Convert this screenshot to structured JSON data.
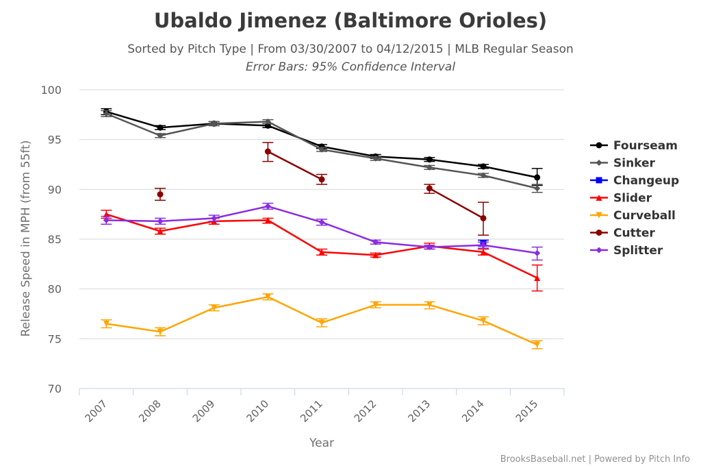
{
  "chart_data": {
    "type": "line",
    "title": "Ubaldo Jimenez (Baltimore Orioles)",
    "subtitle": "Sorted by Pitch Type | From 03/30/2007 to 04/12/2015 | MLB Regular Season",
    "subtitle2": "Error Bars: 95% Confidence Interval",
    "xlabel": "Year",
    "ylabel": "Release Speed in MPH (from 55ft)",
    "ylim": [
      70,
      100
    ],
    "yticks": [
      "70",
      "75",
      "80",
      "85",
      "90",
      "95",
      "100"
    ],
    "categories": [
      "2007",
      "2008",
      "2009",
      "2010",
      "2011",
      "2012",
      "2013",
      "2014",
      "2015"
    ],
    "grid": "horizontal",
    "legend_position": "right",
    "credits": "BrooksBaseball.net | Powered by Pitch Info",
    "series": [
      {
        "name": "Fourseam",
        "color": "#000000",
        "marker": "circle",
        "values": [
          97.8,
          96.2,
          96.6,
          96.4,
          94.3,
          93.3,
          93.0,
          92.3,
          91.2
        ],
        "err_low": [
          97.5,
          96.0,
          96.4,
          96.2,
          94.1,
          93.1,
          92.8,
          92.1,
          90.4
        ],
        "err_high": [
          98.1,
          96.4,
          96.8,
          96.6,
          94.5,
          93.5,
          93.2,
          92.5,
          92.1
        ]
      },
      {
        "name": "Sinker",
        "color": "#555555",
        "marker": "diamond",
        "values": [
          97.6,
          95.4,
          96.6,
          96.8,
          94.0,
          93.1,
          92.2,
          91.4,
          90.1
        ],
        "err_low": [
          97.3,
          95.2,
          96.4,
          96.6,
          93.8,
          92.9,
          92.0,
          91.2,
          89.7
        ],
        "err_high": [
          97.9,
          95.6,
          96.8,
          97.0,
          94.2,
          93.3,
          92.4,
          91.6,
          90.5
        ]
      },
      {
        "name": "Changeup",
        "color": "#0000ff",
        "marker": "square",
        "values": [
          null,
          null,
          null,
          null,
          null,
          null,
          null,
          84.6,
          null
        ],
        "err_low": [
          null,
          null,
          null,
          null,
          null,
          null,
          null,
          84.3,
          null
        ],
        "err_high": [
          null,
          null,
          null,
          null,
          null,
          null,
          null,
          84.9,
          null
        ]
      },
      {
        "name": "Slider",
        "color": "#ff0000",
        "marker": "triangle",
        "values": [
          87.5,
          85.8,
          86.8,
          86.9,
          83.7,
          83.4,
          84.3,
          83.7,
          81.1
        ],
        "err_low": [
          87.1,
          85.5,
          86.5,
          86.6,
          83.4,
          83.2,
          84.0,
          83.4,
          79.8
        ],
        "err_high": [
          87.9,
          86.1,
          87.1,
          87.1,
          84.0,
          83.6,
          84.6,
          84.0,
          82.4
        ]
      },
      {
        "name": "Curveball",
        "color": "#ffa500",
        "marker": "triangle-down",
        "values": [
          76.5,
          75.7,
          78.1,
          79.2,
          76.6,
          78.4,
          78.4,
          76.8,
          74.4
        ],
        "err_low": [
          76.1,
          75.3,
          77.8,
          78.9,
          76.2,
          78.1,
          78.0,
          76.4,
          74.0
        ],
        "err_high": [
          76.9,
          76.1,
          78.4,
          79.5,
          77.0,
          78.7,
          78.7,
          77.2,
          74.8
        ]
      },
      {
        "name": "Cutter",
        "color": "#8b0000",
        "marker": "circle",
        "values": [
          null,
          89.5,
          null,
          93.8,
          91.0,
          null,
          90.1,
          87.1,
          null
        ],
        "err_low": [
          null,
          88.9,
          null,
          92.8,
          90.5,
          null,
          89.6,
          85.4,
          null
        ],
        "err_high": [
          null,
          90.1,
          null,
          94.7,
          91.5,
          null,
          90.5,
          88.7,
          null
        ]
      },
      {
        "name": "Splitter",
        "color": "#8a2be2",
        "marker": "diamond",
        "values": [
          86.9,
          86.8,
          87.1,
          88.3,
          86.7,
          84.7,
          84.2,
          84.4,
          83.6
        ],
        "err_low": [
          86.5,
          86.5,
          86.8,
          88.0,
          86.4,
          84.5,
          84.0,
          84.1,
          82.9
        ],
        "err_high": [
          87.3,
          87.1,
          87.4,
          88.6,
          87.0,
          84.9,
          84.4,
          84.7,
          84.2
        ]
      }
    ]
  }
}
